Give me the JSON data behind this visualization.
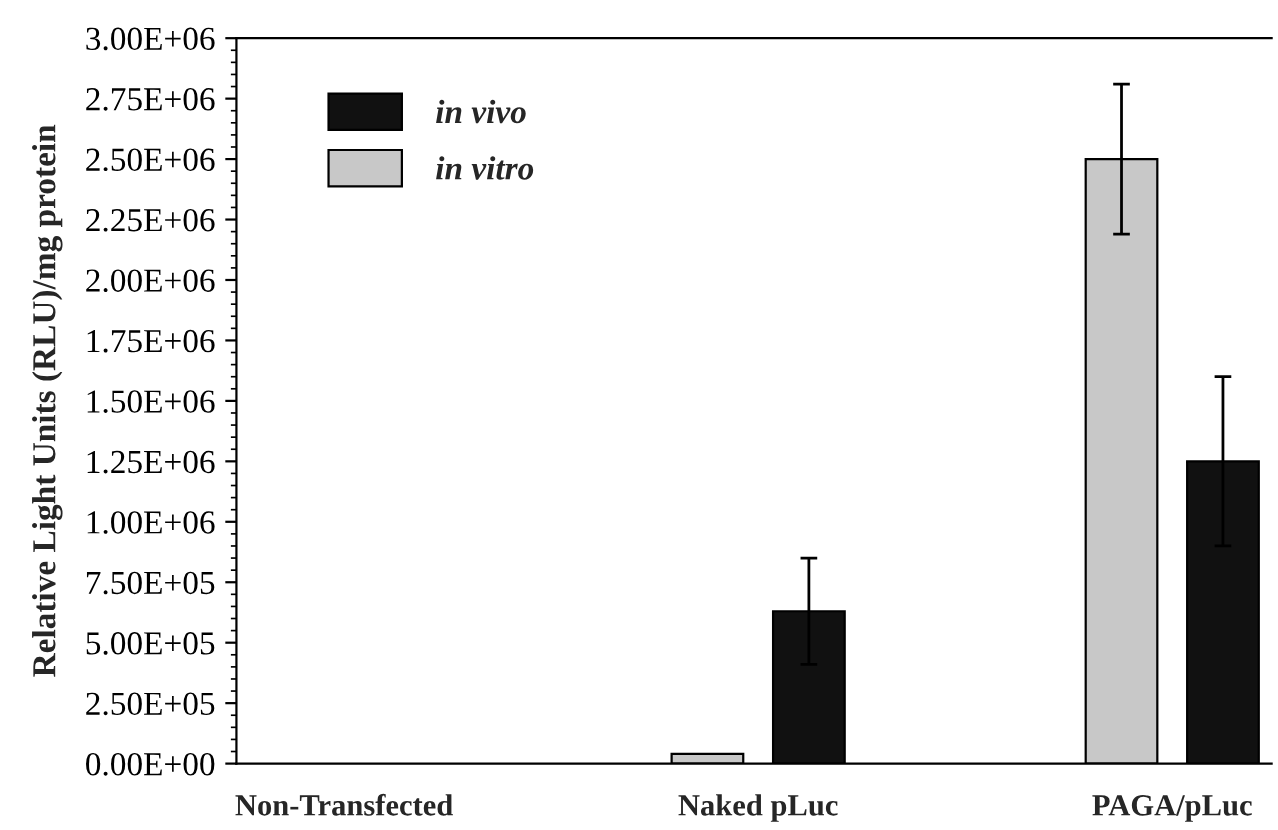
{
  "chart_data": {
    "type": "bar",
    "categories": [
      "Non-Transfected",
      "Naked pLuc",
      "PAGA/pLuc"
    ],
    "ylabel": "Relative Light Units (RLU)/mg protein",
    "series": [
      {
        "name": "in vitro",
        "color": "#c8c8c8",
        "values": [
          null,
          40000,
          2500000
        ],
        "errors": [
          null,
          null,
          310000
        ]
      },
      {
        "name": "in vivo",
        "color": "#111111",
        "values": [
          null,
          630000,
          1250000
        ],
        "errors": [
          null,
          220000,
          350000
        ]
      }
    ],
    "ylim": [
      0,
      3000000
    ],
    "yticks": [
      {
        "value": 0,
        "label": "0.00E+00"
      },
      {
        "value": 250000,
        "label": "2.50E+05"
      },
      {
        "value": 500000,
        "label": "5.00E+05"
      },
      {
        "value": 750000,
        "label": "7.50E+05"
      },
      {
        "value": 1000000,
        "label": "1.00E+06"
      },
      {
        "value": 1250000,
        "label": "1.25E+06"
      },
      {
        "value": 1500000,
        "label": "1.50E+06"
      },
      {
        "value": 1750000,
        "label": "1.75E+06"
      },
      {
        "value": 2000000,
        "label": "2.00E+06"
      },
      {
        "value": 2250000,
        "label": "2.25E+06"
      },
      {
        "value": 2500000,
        "label": "2.50E+06"
      },
      {
        "value": 2750000,
        "label": "2.75E+06"
      },
      {
        "value": 3000000,
        "label": "3.00E+06"
      }
    ],
    "legend": "top left",
    "grid": false
  }
}
